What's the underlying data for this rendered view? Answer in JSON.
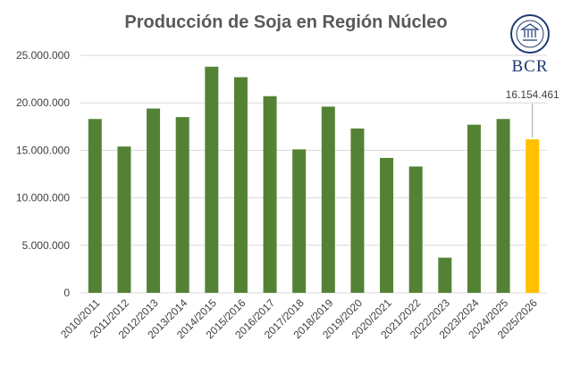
{
  "chart_data": {
    "type": "bar",
    "title": "Producción de Soja en Región Núcleo",
    "xlabel": "",
    "ylabel": "",
    "ylim": [
      0,
      25000000
    ],
    "yticks": [
      "0",
      "5.000.000",
      "10.000.000",
      "15.000.000",
      "20.000.000",
      "25.000.000"
    ],
    "yticks_values": [
      0,
      5000000,
      10000000,
      15000000,
      20000000,
      25000000
    ],
    "grid": true,
    "legend": "none",
    "categories": [
      "2010/2011",
      "2011/2012",
      "2012/2013",
      "2013/2014",
      "2014/2015",
      "2015/2016",
      "2016/2017",
      "2017/2018",
      "2018/2019",
      "2019/2020",
      "2020/2021",
      "2021/2022",
      "2022/2023",
      "2023/2024",
      "2024/2025",
      "2025/2026"
    ],
    "values": [
      18300000,
      15400000,
      19400000,
      18500000,
      23800000,
      22700000,
      20700000,
      15100000,
      19600000,
      17300000,
      14200000,
      13300000,
      3700000,
      17700000,
      18300000,
      16154461
    ],
    "bar_colors": [
      "#548235",
      "#548235",
      "#548235",
      "#548235",
      "#548235",
      "#548235",
      "#548235",
      "#548235",
      "#548235",
      "#548235",
      "#548235",
      "#548235",
      "#548235",
      "#548235",
      "#548235",
      "#FFC000"
    ],
    "annotation": {
      "category": "2025/2026",
      "text": "16.154.461"
    }
  },
  "logo": {
    "text": "BCR",
    "color": "#1f3b73"
  }
}
